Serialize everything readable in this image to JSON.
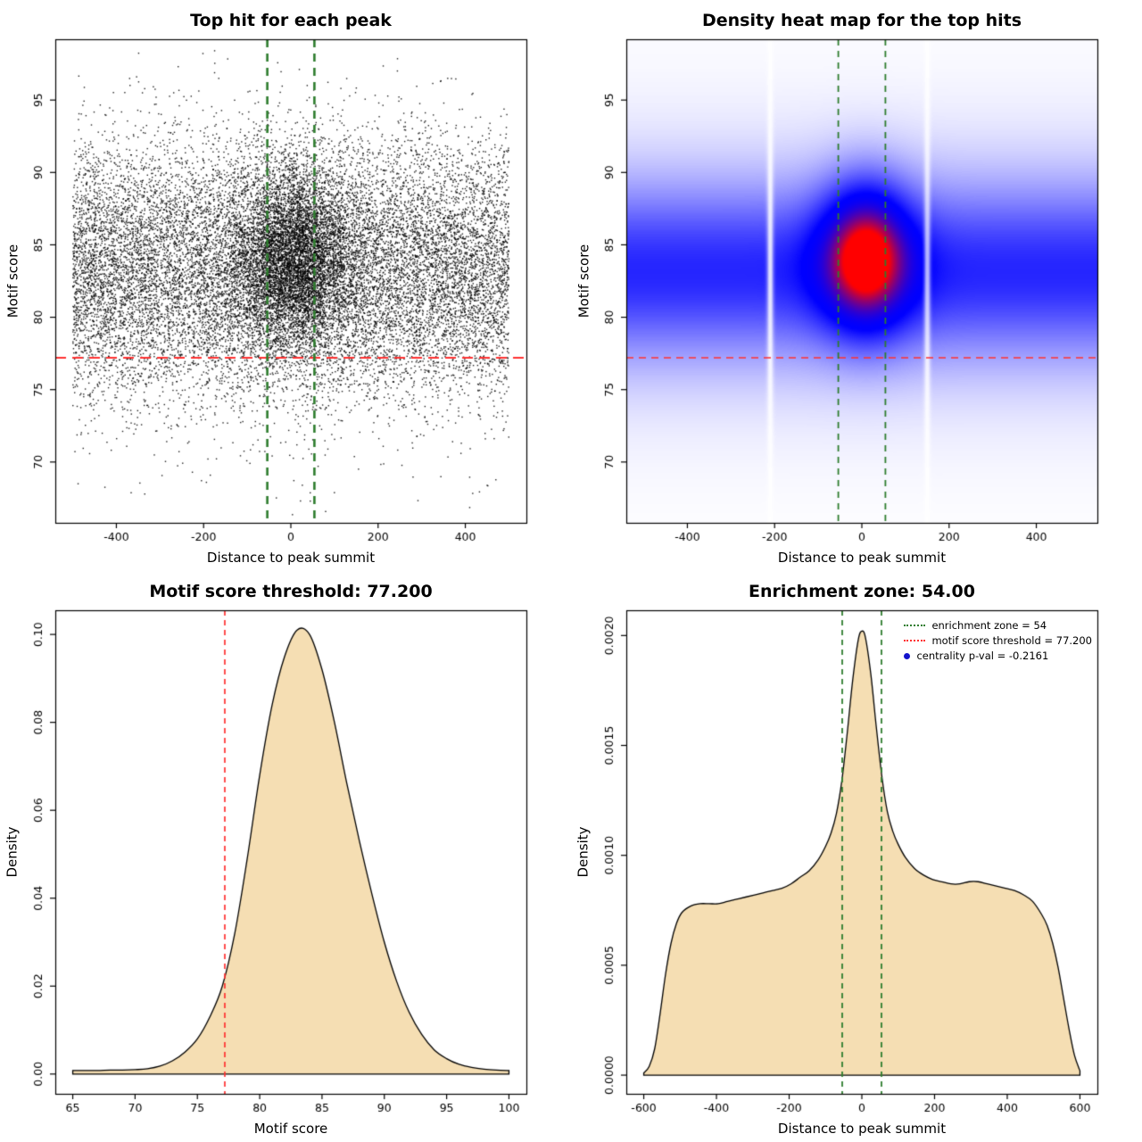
{
  "page": {
    "background": "#FFFFFF",
    "text_color": "#000000"
  },
  "panels": {
    "scatter": {
      "title": "Top hit for each peak",
      "xlabel": "Distance to peak summit",
      "ylabel": "Motif score"
    },
    "heatmap": {
      "title": "Density heat map for the top hits",
      "xlabel": "Distance to peak summit",
      "ylabel": "Motif score"
    },
    "score_density": {
      "title": "Motif score threshold: 77.200",
      "xlabel": "Motif score",
      "ylabel": "Density"
    },
    "distance_density": {
      "title": "Enrichment zone: 54.00",
      "xlabel": "Distance to peak summit",
      "ylabel": "Density"
    }
  },
  "legend": {
    "items": [
      {
        "label": "enrichment zone = 54",
        "swatch": "dotted-line",
        "color": "#2E7D2E"
      },
      {
        "label": "motif score threshold = 77.200",
        "swatch": "dotted-line",
        "color": "#FF3030"
      },
      {
        "label": "centrality p-val = -0.2161",
        "swatch": "dot",
        "color": "#1414CC"
      }
    ]
  },
  "values": {
    "motif_score_threshold": 77.2,
    "enrichment_zone": 54,
    "centrality_p_val": -0.2161
  },
  "chart_data": [
    {
      "id": "scatter",
      "type": "scatter",
      "title": "Top hit for each peak",
      "xlabel": "Distance to peak summit",
      "ylabel": "Motif score",
      "xlim": [
        -540,
        540
      ],
      "ylim": [
        65.8,
        99.2
      ],
      "xtick_values": [
        -400,
        -200,
        0,
        200,
        400
      ],
      "xtick_labels": [
        "-400",
        "-200",
        "0",
        "200",
        "400"
      ],
      "ytick_values": [
        70,
        75,
        80,
        85,
        90,
        95
      ],
      "ytick_labels": [
        "70",
        "75",
        "80",
        "85",
        "90",
        "95"
      ],
      "threshold_line": {
        "y": 77.2,
        "color": "#FF3030",
        "dash": [
          12,
          7
        ],
        "width": 2
      },
      "zone_lines": {
        "x": [
          -54,
          54
        ],
        "color": "#2E7D2E",
        "dash": [
          9,
          7
        ],
        "width": 2.6
      },
      "point_color": "#000000",
      "points_model": {
        "n": 22000,
        "seed": 1337,
        "background": {
          "weight": 0.72,
          "x_uniform": [
            -500,
            500
          ],
          "y_mean": 83.2,
          "y_sd": 4.4
        },
        "cluster": {
          "weight": 0.28,
          "x_mean": 10,
          "x_sd": 72,
          "y_mean": 84.0,
          "y_sd": 3.2
        },
        "outlier_frac": 0.006,
        "outlier_y": [
          66.5,
          98.5
        ],
        "x_range": [
          -500,
          500
        ],
        "y_range": [
          66.3,
          98.7
        ]
      }
    },
    {
      "id": "heatmap",
      "type": "heatmap",
      "title": "Density heat map for the top hits",
      "xlabel": "Distance to peak summit",
      "ylabel": "Motif score",
      "xlim": [
        -540,
        540
      ],
      "ylim": [
        65.8,
        99.2
      ],
      "xtick_values": [
        -400,
        -200,
        0,
        200,
        400
      ],
      "xtick_labels": [
        "-400",
        "-200",
        "0",
        "200",
        "400"
      ],
      "ytick_values": [
        70,
        75,
        80,
        85,
        90,
        95
      ],
      "ytick_labels": [
        "70",
        "75",
        "80",
        "85",
        "90",
        "95"
      ],
      "threshold_line": {
        "y": 77.2,
        "color": "#FF3030",
        "dash": [
          8,
          6
        ],
        "width": 1.6
      },
      "zone_lines": {
        "x": [
          -54,
          54
        ],
        "color": "#2E7D2E",
        "dash": [
          7,
          6
        ],
        "width": 1.8
      },
      "density_model": {
        "band": {
          "y_mean": 83.2,
          "y_sd": 4.0,
          "amp": 0.4
        },
        "band_wide": {
          "y_mean": 83.0,
          "y_sd": 7.0,
          "amp": 0.14
        },
        "blob": {
          "x_mean": 10,
          "x_sd": 72,
          "y_mean": 84.2,
          "y_sd": 3.5,
          "amp": 0.8
        },
        "white_gaps_x": [
          -210,
          150
        ],
        "gap_sd": 5,
        "norm": 1.15
      },
      "color_ramp": {
        "low": "#FFFFFF",
        "mid": "#0000FF",
        "high": "#FF0000"
      }
    },
    {
      "id": "score_density",
      "type": "area",
      "title": "Motif score threshold: 77.200",
      "xlabel": "Motif score",
      "ylabel": "Density",
      "xlim": [
        63.6,
        101.4
      ],
      "ylim": [
        -0.0045,
        0.1055
      ],
      "xtick_values": [
        65,
        70,
        75,
        80,
        85,
        90,
        95,
        100
      ],
      "xtick_labels": [
        "65",
        "70",
        "75",
        "80",
        "85",
        "90",
        "95",
        "100"
      ],
      "ytick_values": [
        0,
        0.02,
        0.04,
        0.06,
        0.08,
        0.1
      ],
      "ytick_labels": [
        "0.00",
        "0.02",
        "0.04",
        "0.06",
        "0.08",
        "0.10"
      ],
      "fill_color": "#F5DEB3",
      "stroke_color": "#000000",
      "threshold_line": {
        "x": 77.2,
        "color": "#FF3030",
        "dash": [
          6,
          5
        ],
        "width": 1.7
      },
      "x": [
        65,
        66,
        67,
        68,
        69,
        70,
        71,
        72,
        73,
        74,
        75,
        76,
        77,
        78,
        79,
        80,
        81,
        82,
        83,
        84,
        85,
        86,
        87,
        88,
        89,
        90,
        91,
        92,
        93,
        94,
        95,
        96,
        97,
        98,
        99,
        100
      ],
      "y": [
        0.0008,
        0.0008,
        0.0008,
        0.0009,
        0.0009,
        0.001,
        0.0012,
        0.0018,
        0.003,
        0.005,
        0.008,
        0.013,
        0.02,
        0.032,
        0.049,
        0.068,
        0.084,
        0.095,
        0.101,
        0.1,
        0.092,
        0.08,
        0.066,
        0.053,
        0.041,
        0.03,
        0.021,
        0.014,
        0.009,
        0.0055,
        0.0035,
        0.0022,
        0.0015,
        0.0011,
        0.0009,
        0.0008
      ]
    },
    {
      "id": "distance_density",
      "type": "area",
      "title": "Enrichment zone: 54.00",
      "xlabel": "Distance to peak summit",
      "ylabel": "Density",
      "xlim": [
        -648,
        648
      ],
      "ylim": [
        -8.5e-05,
        0.002115
      ],
      "xtick_values": [
        -600,
        -400,
        -200,
        0,
        200,
        400,
        600
      ],
      "xtick_labels": [
        "-600",
        "-400",
        "-200",
        "0",
        "200",
        "400",
        "600"
      ],
      "ytick_values": [
        0,
        0.0005,
        0.001,
        0.0015,
        0.002
      ],
      "ytick_labels": [
        "0.0000",
        "0.0005",
        "0.0010",
        "0.0015",
        "0.0020"
      ],
      "fill_color": "#F5DEB3",
      "stroke_color": "#000000",
      "zone_lines": {
        "x": [
          -54,
          54
        ],
        "color": "#2E7D2E",
        "dash": [
          6,
          5
        ],
        "width": 1.8
      },
      "x": [
        -600,
        -585,
        -570,
        -555,
        -540,
        -525,
        -510,
        -495,
        -470,
        -445,
        -420,
        -395,
        -370,
        -345,
        -320,
        -295,
        -270,
        -245,
        -220,
        -195,
        -170,
        -145,
        -120,
        -100,
        -85,
        -70,
        -55,
        -40,
        -25,
        -10,
        0,
        10,
        25,
        40,
        55,
        70,
        85,
        100,
        120,
        145,
        170,
        195,
        220,
        245,
        270,
        295,
        320,
        345,
        370,
        395,
        420,
        445,
        470,
        495,
        510,
        525,
        540,
        555,
        570,
        585,
        600
      ],
      "y": [
        1e-05,
        4e-05,
        0.00012,
        0.00028,
        0.00046,
        0.0006,
        0.00069,
        0.00074,
        0.00077,
        0.00078,
        0.00078,
        0.00078,
        0.00079,
        0.0008,
        0.00081,
        0.00082,
        0.00083,
        0.00084,
        0.00085,
        0.00087,
        0.0009,
        0.00093,
        0.00098,
        0.00104,
        0.0011,
        0.00119,
        0.00134,
        0.00156,
        0.0018,
        0.00198,
        0.00202,
        0.00199,
        0.00182,
        0.00158,
        0.00136,
        0.0012,
        0.00111,
        0.00105,
        0.00099,
        0.00094,
        0.00091,
        0.00089,
        0.00088,
        0.00087,
        0.00087,
        0.00088,
        0.00088,
        0.00087,
        0.00086,
        0.00085,
        0.00084,
        0.00082,
        0.00079,
        0.00073,
        0.00068,
        0.0006,
        0.00049,
        0.00035,
        0.00021,
        9e-05,
        2e-05
      ]
    }
  ]
}
